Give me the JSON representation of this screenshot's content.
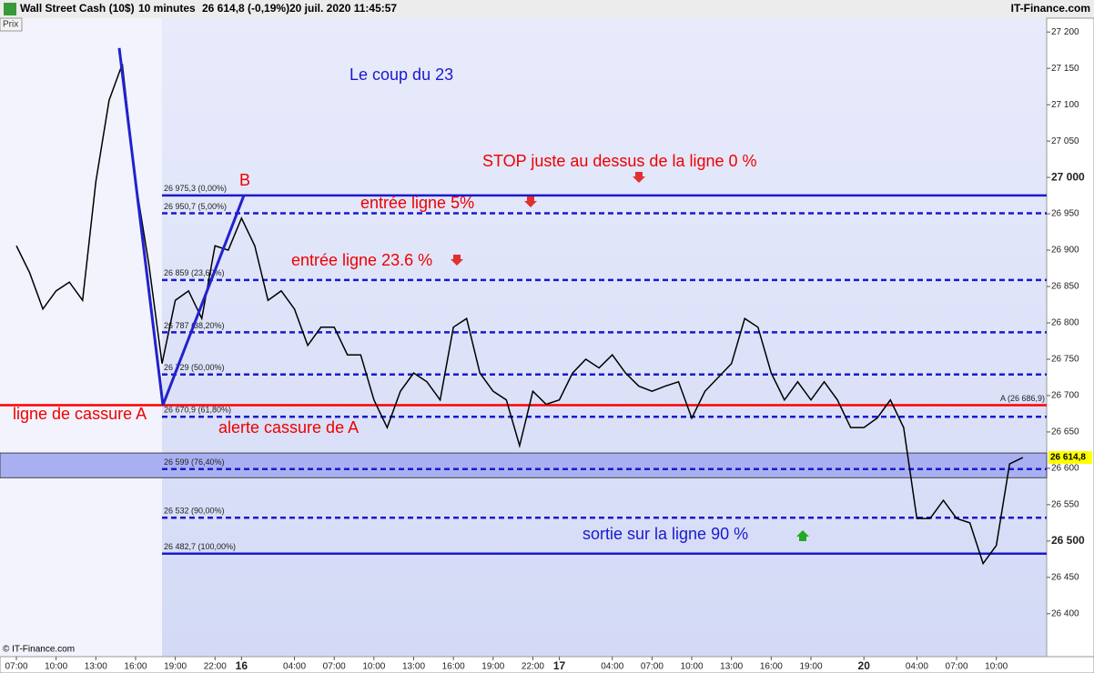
{
  "header": {
    "instrument": "Wall Street Cash (10$)",
    "interval": "10 minutes",
    "quote": "26 614,8 (-0,19%)",
    "datetime": "20 juil. 2020 11:45:57",
    "brand": "IT-Finance.com"
  },
  "chart_data": {
    "type": "line",
    "y_axis_label": "Prix",
    "watermark": "© IT-Finance.com",
    "categories": [
      "07:00",
      null,
      null,
      "10:00",
      null,
      null,
      "13:00",
      null,
      null,
      "16:00",
      null,
      null,
      "19:00",
      null,
      null,
      "22:00",
      null,
      "16",
      null,
      null,
      null,
      "04:00",
      null,
      null,
      "07:00",
      null,
      null,
      "10:00",
      null,
      null,
      "13:00",
      null,
      null,
      "16:00",
      null,
      null,
      "19:00",
      null,
      null,
      "22:00",
      null,
      "17",
      null,
      null,
      null,
      "04:00",
      null,
      null,
      "07:00",
      null,
      null,
      "10:00",
      null,
      null,
      "13:00",
      null,
      null,
      "16:00",
      null,
      null,
      "19:00",
      null,
      null,
      null,
      "20",
      null,
      null,
      null,
      "04:00",
      null,
      null,
      "07:00",
      null,
      null,
      "10:00",
      null,
      null
    ],
    "series": [
      {
        "color": "#000000",
        "values": [
          26906,
          26869,
          26819,
          26844,
          26856,
          26831,
          26994,
          27106,
          27156,
          26994,
          26881,
          26744,
          26831,
          26844,
          26806,
          26906,
          26900,
          26944,
          26906,
          26831,
          26844,
          26819,
          26769,
          26794,
          26794,
          26756,
          26756,
          26694,
          26656,
          26706,
          26731,
          26719,
          26694,
          26794,
          26806,
          26731,
          26706,
          26694,
          26631,
          26706,
          26688,
          26694,
          26731,
          26750,
          26738,
          26756,
          26731,
          26713,
          26706,
          26713,
          26719,
          26669,
          26706,
          26725,
          26744,
          26806,
          26794,
          26731,
          26694,
          26719,
          26694,
          26719,
          26694,
          26656,
          26656,
          26669,
          26694,
          26656,
          26531,
          26531,
          26556,
          26531,
          26525,
          26469,
          26494,
          26606,
          26614.8
        ]
      }
    ],
    "ylim": [
      26341,
      27219
    ],
    "yticks": [
      {
        "value": 26400,
        "label": "26 400"
      },
      {
        "value": 26450,
        "label": "26 450"
      },
      {
        "value": 26500,
        "label": "26 500"
      },
      {
        "value": 26550,
        "label": "26 550"
      },
      {
        "value": 26600,
        "label": "26 600"
      },
      {
        "value": 26650,
        "label": "26 650"
      },
      {
        "value": 26700,
        "label": "26 700"
      },
      {
        "value": 26750,
        "label": "26 750"
      },
      {
        "value": 26800,
        "label": "26 800"
      },
      {
        "value": 26850,
        "label": "26 850"
      },
      {
        "value": 26900,
        "label": "26 900"
      },
      {
        "value": 26950,
        "label": "26 950"
      },
      {
        "value": 27000,
        "label": "27 000"
      },
      {
        "value": 27050,
        "label": "27 050"
      },
      {
        "value": 27100,
        "label": "27 100"
      },
      {
        "value": 27150,
        "label": "27 150"
      },
      {
        "value": 27200,
        "label": "27 200"
      }
    ],
    "levels": [
      {
        "value": 26975.3,
        "label": "26 975,3 (0,00%)"
      },
      {
        "value": 26950.7,
        "label": "26 950,7 (5,00%)"
      },
      {
        "value": 26859,
        "label": "26 859 (23,60%)"
      },
      {
        "value": 26787,
        "label": "26 787 (38,20%)"
      },
      {
        "value": 26729,
        "label": "26 729 (50,00%)"
      },
      {
        "value": 26670.9,
        "label": "26 670,9 (61,80%)"
      },
      {
        "value": 26599,
        "label": "26 599 (76,40%)"
      },
      {
        "value": 26532,
        "label": "26 532 (90,00%)"
      },
      {
        "value": 26482.7,
        "label": "26 482,7 (100,00%)"
      }
    ],
    "level_color": "#1a1acc",
    "reference_line": {
      "value": 26686.9,
      "label": "A (26 686,9)",
      "color": "#ff0000"
    },
    "last_price": {
      "value": 26614.8,
      "label": "26 614,8",
      "color": "#ffff00"
    },
    "zone": [
      26587,
      26621
    ],
    "zigzag": {
      "values": [
        27178,
        26686.9,
        26975.3
      ],
      "color": "#2222cc",
      "label": "B"
    },
    "annotations": [
      {
        "text": "Le coup du 23",
        "color": "#1a1acc"
      },
      {
        "text": "STOP juste au dessus de la ligne 0 %",
        "color": "#ee0000"
      },
      {
        "text": "entrée ligne 5%",
        "color": "#ee0000"
      },
      {
        "text": "entrée ligne 23.6 %",
        "color": "#ee0000"
      },
      {
        "text": "ligne de cassure A",
        "color": "#ee0000"
      },
      {
        "text": "alerte cassure de A",
        "color": "#ee0000"
      },
      {
        "text": "sortie sur la ligne 90 %",
        "color": "#1a1acc"
      }
    ]
  }
}
